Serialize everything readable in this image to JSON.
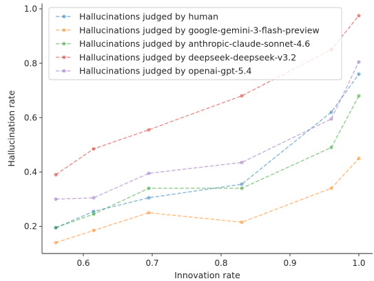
{
  "chart_data": {
    "type": "line",
    "xlabel": "Innovation rate",
    "ylabel": "Hallucination rate",
    "xlim": [
      0.54,
      1.02
    ],
    "ylim": [
      0.1,
      1.02
    ],
    "xticks": [
      0.6,
      0.7,
      0.8,
      0.9,
      1.0
    ],
    "xtick_labels": [
      "0.6",
      "0.7",
      "0.8",
      "0.9",
      "1.0"
    ],
    "yticks": [
      0.2,
      0.4,
      0.6,
      0.8,
      1.0
    ],
    "ytick_labels": [
      "0.2",
      "0.4",
      "0.6",
      "0.8",
      "1.0"
    ],
    "grid": false,
    "legend_position": "top-left",
    "x": [
      0.56,
      0.615,
      0.695,
      0.83,
      0.96,
      1.0
    ],
    "series": [
      {
        "name": "Hallucinations judged by human",
        "color": "#1f77b4",
        "values": [
          0.195,
          0.255,
          0.305,
          0.355,
          0.62,
          0.76
        ]
      },
      {
        "name": "Hallucinations judged by google-gemini-3-flash-preview",
        "color": "#ff7f0e",
        "values": [
          0.14,
          0.185,
          0.25,
          0.215,
          0.34,
          0.45
        ]
      },
      {
        "name": "Hallucinations judged by anthropic-claude-sonnet-4.6",
        "color": "#2ca02c",
        "values": [
          0.195,
          0.245,
          0.34,
          0.34,
          0.49,
          0.68
        ]
      },
      {
        "name": "Hallucinations judged by deepseek-deepseek-v3.2",
        "color": "#d62728",
        "values": [
          0.39,
          0.485,
          0.555,
          0.68,
          0.85,
          0.975
        ]
      },
      {
        "name": "Hallucinations judged by openai-gpt-5.4",
        "color": "#9467bd",
        "values": [
          0.3,
          0.305,
          0.395,
          0.435,
          0.595,
          0.805
        ]
      }
    ]
  }
}
